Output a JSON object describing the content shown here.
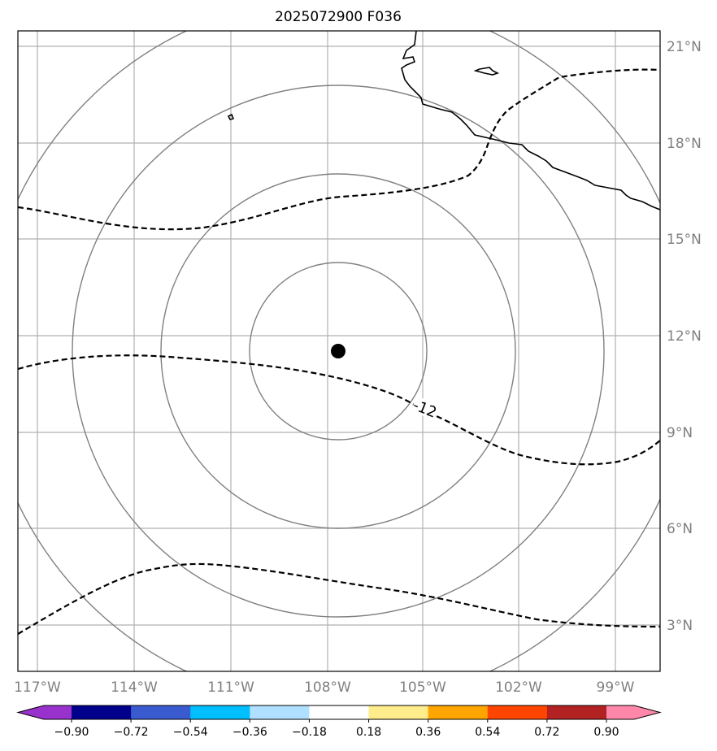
{
  "title": "2025072900 F036",
  "longitude_labels": [
    "117°W",
    "114°W",
    "111°W",
    "108°W",
    "105°W",
    "102°W",
    "99°W"
  ],
  "latitude_labels": [
    "21°N",
    "18°N",
    "15°N",
    "12°N",
    "9°N",
    "6°N",
    "3°N"
  ],
  "contour_label": "-12",
  "colorbar": {
    "colors": [
      "#9932cc",
      "#00008b",
      "#3a5bd0",
      "#00bfff",
      "#b0e0ff",
      "#ffffff",
      "#ffec8b",
      "#ffa500",
      "#ff4500",
      "#b22222",
      "#ff88aa"
    ],
    "tick_labels": [
      "−0.90",
      "−0.72",
      "−0.54",
      "−0.36",
      "−0.18",
      "0.18",
      "0.36",
      "0.54",
      "0.72",
      "0.90"
    ]
  },
  "colors": {
    "grid": "#b0b0b0",
    "range_rings": "#808080",
    "contours": "#000000",
    "coastline": "#000000",
    "center_marker": "#000000"
  }
}
